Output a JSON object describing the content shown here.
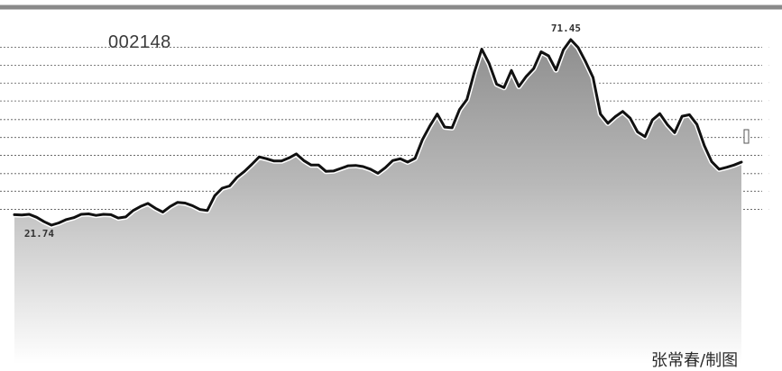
{
  "ticker_label": "002148",
  "credit": "张常春/制图",
  "chart_data": {
    "type": "area",
    "title": "",
    "xlabel": "",
    "ylabel": "",
    "ylim": [
      18,
      74
    ],
    "grid": true,
    "annotations": [
      {
        "text": "21.74",
        "index": 4
      },
      {
        "text": "71.45",
        "index": 75
      }
    ],
    "y_gridlines": [
      25.9,
      30.8,
      35.5,
      40.4,
      45.2,
      50.0,
      55.0,
      59.8,
      64.6,
      69.4
    ],
    "series": [
      {
        "values": [
          24.5,
          24.4,
          24.6,
          23.8,
          22.6,
          21.7,
          22.3,
          23.2,
          23.7,
          24.6,
          24.7,
          24.3,
          24.6,
          24.5,
          23.6,
          23.9,
          25.6,
          26.7,
          27.5,
          26.2,
          25.2,
          26.7,
          27.8,
          27.6,
          26.9,
          25.9,
          25.6,
          29.6,
          31.6,
          32.2,
          34.5,
          36.1,
          38.0,
          40.0,
          39.5,
          38.9,
          38.9,
          39.7,
          40.8,
          39.0,
          37.8,
          37.8,
          36.1,
          36.2,
          36.9,
          37.6,
          37.7,
          37.4,
          36.7,
          35.6,
          37.1,
          39.0,
          39.5,
          38.6,
          39.6,
          44.6,
          48.3,
          51.5,
          48.0,
          47.8,
          52.7,
          55.4,
          62.7,
          68.9,
          65.0,
          59.5,
          58.6,
          63.2,
          58.9,
          61.6,
          63.7,
          68.2,
          67.1,
          63.3,
          68.7,
          71.45,
          69.3,
          65.5,
          61.3,
          51.5,
          49.0,
          50.8,
          52.2,
          50.4,
          46.7,
          45.4,
          49.9,
          51.6,
          48.7,
          46.5,
          50.9,
          51.3,
          48.7,
          43.0,
          38.7,
          36.7,
          37.2,
          37.8,
          38.6
        ]
      }
    ]
  }
}
